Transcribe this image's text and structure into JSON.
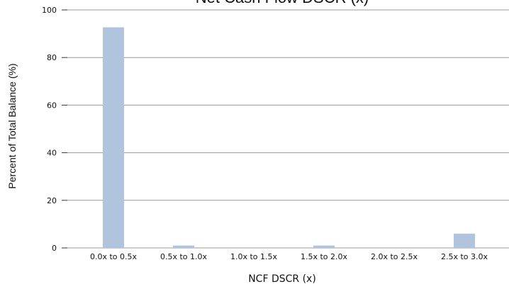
{
  "chart_data": {
    "type": "bar",
    "title": "Net Cash Flow DSCR (x)",
    "xlabel": "NCF DSCR (x)",
    "ylabel": "Percent of Total Balance (%)",
    "categories": [
      "0.0x to 0.5x",
      "0.5x to 1.0x",
      "1.0x to 1.5x",
      "1.5x to 2.0x",
      "2.0x to 2.5x",
      "2.5x to 3.0x"
    ],
    "values": [
      92.7,
      1.0,
      0.0,
      1.0,
      0.0,
      6.0
    ],
    "ylim": [
      0,
      100
    ],
    "yticks": [
      "0",
      "20",
      "40",
      "60",
      "80",
      "100"
    ],
    "grid": true,
    "bar_color": "#b0c4de",
    "grid_color": "#999999"
  }
}
